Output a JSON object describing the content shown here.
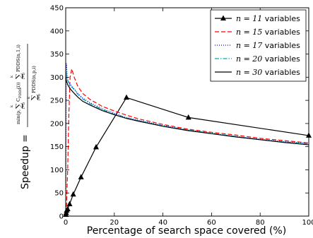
{
  "chart_data": {
    "type": "line",
    "xlabel": "Percentage of search space covered (%)",
    "ylabel_prefix": "Speedup = ",
    "ylabel_numerator": "min(p, Σ C_{PDDS}(i)) Σ PDDS(n,1,i)",
    "ylabel_denominator": "Σ PDDS(n,p,i)",
    "xlim": [
      0,
      100
    ],
    "ylim": [
      0,
      450
    ],
    "xticks": [
      0,
      20,
      40,
      60,
      80,
      100
    ],
    "yticks": [
      0,
      50,
      100,
      150,
      200,
      250,
      300,
      350,
      400,
      450
    ],
    "legend_position": "top-right",
    "grid": false,
    "series": [
      {
        "name": "n=11 variables",
        "label_math": "n = 11",
        "label_text": " variables",
        "color": "#000000",
        "style": "solid-triangle",
        "x": [
          0.05,
          0.2,
          0.4,
          0.8,
          1.6,
          3.1,
          6.3,
          12.5,
          25,
          50.5,
          100
        ],
        "y": [
          3,
          7,
          12,
          15,
          26,
          47,
          84,
          149,
          256,
          213,
          174
        ]
      },
      {
        "name": "n=15 variables",
        "label_math": "n = 15",
        "label_text": " variables",
        "color": "#ff0000",
        "style": "dashed",
        "x": [
          0.3,
          0.8,
          1.3,
          1.8,
          2.5,
          3.5,
          5,
          7,
          10,
          15,
          20,
          25,
          30,
          40,
          50,
          60,
          70,
          80,
          90,
          100
        ],
        "y": [
          20,
          100,
          220,
          300,
          318,
          300,
          280,
          265,
          252,
          237,
          227,
          218,
          210,
          198,
          188,
          181,
          175,
          168,
          163,
          158
        ]
      },
      {
        "name": "n=17 variables",
        "label_math": "n = 17",
        "label_text": " variables",
        "color": "#0000cc",
        "style": "dotted",
        "x": [
          0.05,
          0.3,
          0.6,
          1,
          1.5,
          2,
          3,
          5,
          7,
          10,
          15,
          20,
          25,
          30,
          40,
          50,
          60,
          70,
          80,
          90,
          100
        ],
        "y": [
          45,
          330,
          300,
          292,
          287,
          284,
          278,
          265,
          255,
          245,
          232,
          222,
          213,
          207,
          196,
          186,
          179,
          172,
          166,
          161,
          157
        ]
      },
      {
        "name": "n=20 variables",
        "label_math": "n = 20",
        "label_text": " variables",
        "color": "#00aaaa",
        "style": "dashdot",
        "x": [
          0.05,
          0.3,
          0.6,
          1,
          1.5,
          2,
          3,
          5,
          7,
          10,
          15,
          20,
          25,
          30,
          40,
          50,
          60,
          70,
          80,
          90,
          100
        ],
        "y": [
          330,
          305,
          297,
          290,
          285,
          281,
          276,
          263,
          253,
          243,
          230,
          220,
          212,
          206,
          195,
          186,
          179,
          172,
          165,
          160,
          156
        ]
      },
      {
        "name": "n=30 variables",
        "label_math": "n = 30",
        "label_text": " variables",
        "color": "#000000",
        "style": "solid",
        "x": [
          0.05,
          0.3,
          0.6,
          1,
          1.5,
          2,
          3,
          5,
          7,
          10,
          15,
          20,
          25,
          30,
          40,
          50,
          60,
          70,
          80,
          90,
          100
        ],
        "y": [
          300,
          292,
          287,
          282,
          278,
          274,
          268,
          257,
          248,
          240,
          228,
          219,
          211,
          205,
          194,
          185,
          178,
          171,
          165,
          159,
          154
        ]
      }
    ]
  }
}
